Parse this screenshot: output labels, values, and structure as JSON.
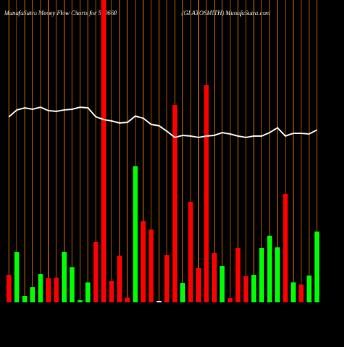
{
  "chart_data": {
    "type": "bar",
    "title": "MunafaSutra  Money Flow  Charts for 500660",
    "subtitle": "(GLAXOSMITH) MunafaSutra.com",
    "categories": [
      null,
      null,
      null,
      null,
      null,
      null,
      null,
      null,
      null,
      null,
      null,
      null,
      null,
      null,
      null,
      null,
      null,
      null,
      null,
      null,
      null,
      null,
      null,
      null,
      null,
      null,
      null,
      null,
      null,
      null,
      null,
      null,
      null,
      null,
      null,
      null,
      null,
      null,
      null,
      null
    ],
    "ylim": [
      0,
      440
    ],
    "series": [
      {
        "type": "bar",
        "values": [
          40,
          73,
          9,
          22,
          41,
          35,
          36,
          73,
          51,
          3,
          29,
          88,
          440,
          31,
          68,
          7,
          198,
          118,
          106,
          2,
          69,
          287,
          28,
          146,
          50,
          316,
          72,
          53,
          6,
          79,
          38,
          40,
          79,
          97,
          80,
          158,
          29,
          26,
          39,
          103
        ],
        "colors": [
          "#ff0000",
          "#00ff00",
          "#00ff00",
          "#00ff00",
          "#00ff00",
          "#ff0000",
          "#ff0000",
          "#00ff00",
          "#00ff00",
          "#00ff00",
          "#00ff00",
          "#ff0000",
          "#ff0000",
          "#ff0000",
          "#ff0000",
          "#ff0000",
          "#00ff00",
          "#ff0000",
          "#ff0000",
          "#ffffff",
          "#ff0000",
          "#ff0000",
          "#00ff00",
          "#ff0000",
          "#ff0000",
          "#ff0000",
          "#ff0000",
          "#00ff00",
          "#ff0000",
          "#ff0000",
          "#ff0000",
          "#00ff00",
          "#00ff00",
          "#00ff00",
          "#00ff00",
          "#ff0000",
          "#00ff00",
          "#ff0000",
          "#00ff00",
          "#00ff00"
        ]
      },
      {
        "type": "line",
        "color": "#ffffff",
        "values": [
          270,
          280,
          283,
          281,
          284,
          279,
          278,
          280,
          281,
          284,
          283,
          270,
          266,
          264,
          261,
          262,
          271,
          268,
          259,
          257,
          249,
          240,
          243,
          242,
          240,
          242,
          243,
          247,
          245,
          242,
          240,
          242,
          242,
          247,
          254,
          242,
          246,
          246,
          245,
          251
        ]
      }
    ],
    "gridline_color": "#b35900",
    "background": "#000000"
  }
}
